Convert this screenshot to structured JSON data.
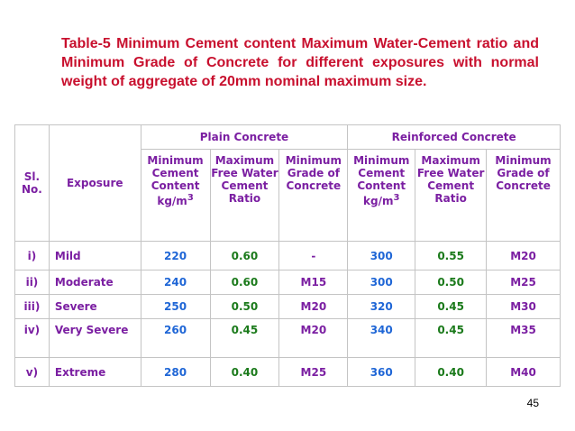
{
  "title": "Table-5 Minimum Cement content Maximum Water-Cement ratio and Minimum Grade of Concrete for different exposures with normal weight of aggregate of 20mm nominal maximum size.",
  "table": {
    "col_sl": "Sl. No.",
    "col_exposure": "Exposure",
    "group_plain": "Plain Concrete",
    "group_reinforced": "Reinforced Concrete",
    "sub": {
      "min_cement": "Minimum Cement Content kg/m",
      "min_cement_sup": "3",
      "max_wc": "Maximum Free Water Cement Ratio",
      "min_grade": "Minimum Grade of Concrete"
    },
    "rows": [
      {
        "sl": "i)",
        "exposure": "Mild",
        "p_cement": "220",
        "p_wc": "0.60",
        "p_grade": "-",
        "r_cement": "300",
        "r_wc": "0.55",
        "r_grade": "M20"
      },
      {
        "sl": "ii)",
        "exposure": "Moderate",
        "p_cement": "240",
        "p_wc": "0.60",
        "p_grade": "M15",
        "r_cement": "300",
        "r_wc": "0.50",
        "r_grade": "M25"
      },
      {
        "sl": "iii)",
        "exposure": "Severe",
        "p_cement": "250",
        "p_wc": "0.50",
        "p_grade": "M20",
        "r_cement": "320",
        "r_wc": "0.45",
        "r_grade": "M30"
      },
      {
        "sl": "iv)",
        "exposure": "Very Severe",
        "p_cement": "260",
        "p_wc": "0.45",
        "p_grade": "M20",
        "r_cement": "340",
        "r_wc": "0.45",
        "r_grade": "M35"
      },
      {
        "sl": "v)",
        "exposure": "Extreme",
        "p_cement": "280",
        "p_wc": "0.40",
        "p_grade": "M25",
        "r_cement": "360",
        "r_wc": "0.40",
        "r_grade": "M40"
      }
    ]
  },
  "page_number": "45",
  "colors": {
    "title": "#c8102e",
    "header": "#7b1fa2",
    "cement": "#1f66d6",
    "wc": "#1b7a1b",
    "grade": "#7b1fa2"
  }
}
